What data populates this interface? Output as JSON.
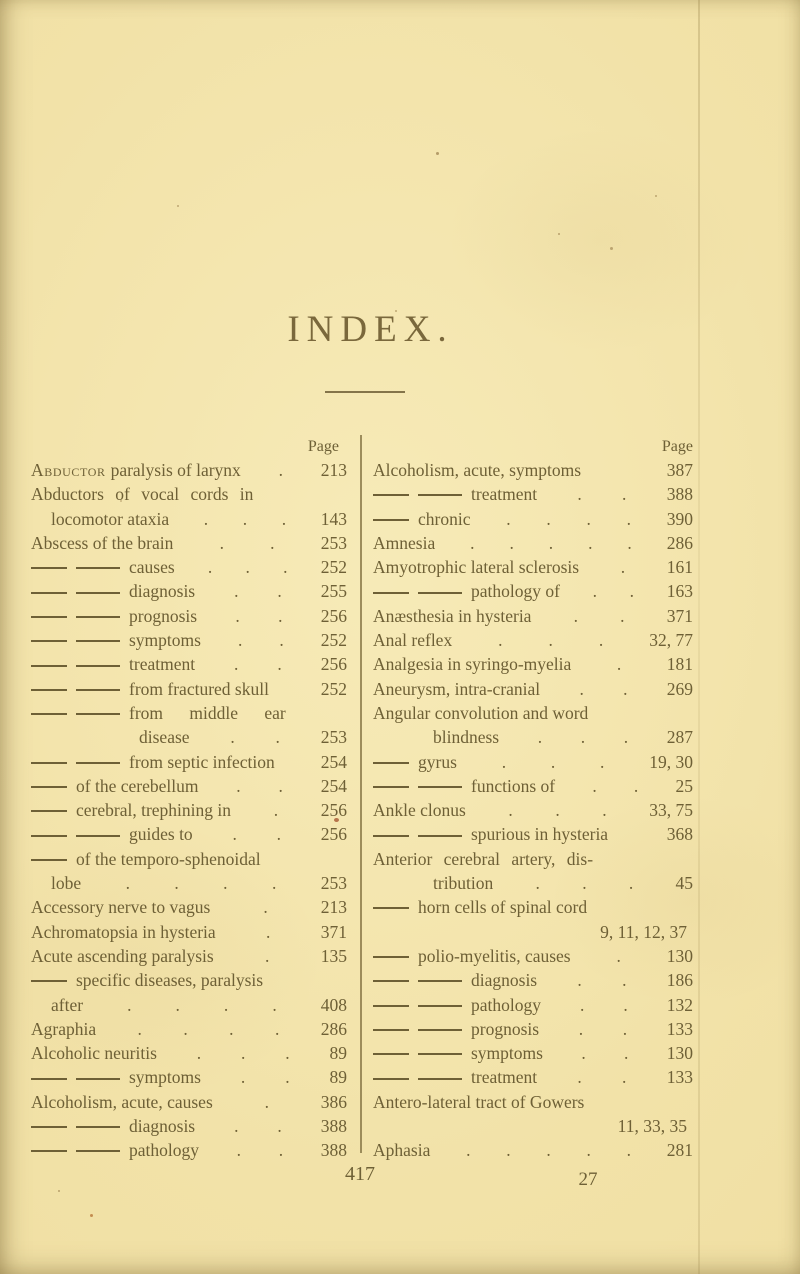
{
  "page": {
    "title": "INDEX.",
    "folio": "417",
    "signature": "27"
  },
  "columns": {
    "left": {
      "header": "Page",
      "entries": [
        {
          "sc": "Abductor",
          "text": "paralysis of larynx",
          "dots": 1,
          "page": "213"
        },
        {
          "text": "Abductors of vocal cords in",
          "spread": 1
        },
        {
          "text": "locomotor ataxia",
          "indent": 1,
          "dots": 3,
          "page": "143"
        },
        {
          "text": "Abscess of the brain",
          "dots": 2,
          "page": "253"
        },
        {
          "dashes": 2,
          "text": "causes",
          "dots": 3,
          "page": "252"
        },
        {
          "dashes": 2,
          "text": "diagnosis",
          "dots": 2,
          "page": "255"
        },
        {
          "dashes": 2,
          "text": "prognosis",
          "dots": 2,
          "page": "256"
        },
        {
          "dashes": 2,
          "text": "symptoms",
          "dots": 2,
          "page": "252"
        },
        {
          "dashes": 2,
          "text": "treatment",
          "dots": 2,
          "page": "256"
        },
        {
          "dashes": 2,
          "text": "from fractured skull",
          "dots": 0,
          "page": "252"
        },
        {
          "dashes": 2,
          "text": "from middle ear",
          "spread": 2
        },
        {
          "text": "disease",
          "indent": 3,
          "dots": 2,
          "page": "253"
        },
        {
          "dashes": 2,
          "text": "from septic infection",
          "dots": 0,
          "page": "254"
        },
        {
          "dashes": 1,
          "text": "of the cerebellum",
          "dots": 2,
          "page": "254"
        },
        {
          "dashes": 1,
          "text": "cerebral, trephining in",
          "dots": 1,
          "page": "256"
        },
        {
          "dashes": 2,
          "text": "guides to",
          "dots": 2,
          "page": "256"
        },
        {
          "dashes": 1,
          "text": "of the temporo-sphenoidal"
        },
        {
          "text": "lobe",
          "indent": 1,
          "dots": 4,
          "page": "253"
        },
        {
          "text": "Accessory nerve to vagus",
          "dots": 1,
          "page": "213"
        },
        {
          "text": "Achromatopsia in hysteria",
          "dots": 1,
          "page": "371"
        },
        {
          "text": "Acute ascending paralysis",
          "dots": 1,
          "page": "135"
        },
        {
          "dashes": 1,
          "text": "specific diseases, paralysis"
        },
        {
          "text": "after",
          "indent": 1,
          "dots": 4,
          "page": "408"
        },
        {
          "text": "Agraphia",
          "dots": 4,
          "page": "286"
        },
        {
          "text": "Alcoholic neuritis",
          "dots": 3,
          "page": "89"
        },
        {
          "dashes": 2,
          "text": "symptoms",
          "dots": 2,
          "page": "89"
        },
        {
          "text": "Alcoholism, acute, causes",
          "dots": 1,
          "page": "386"
        },
        {
          "dashes": 2,
          "text": "diagnosis",
          "dots": 2,
          "page": "388"
        },
        {
          "dashes": 2,
          "text": "pathology",
          "dots": 2,
          "page": "388"
        }
      ]
    },
    "right": {
      "header": "Page",
      "entries": [
        {
          "text": "Alcoholism, acute, symptoms",
          "dots": 0,
          "page": "387"
        },
        {
          "dashes": 2,
          "text": "treatment",
          "dots": 2,
          "page": "388"
        },
        {
          "dashes": 1,
          "text": "chronic",
          "dots": 4,
          "page": "390"
        },
        {
          "text": "Amnesia",
          "dots": 5,
          "page": "286"
        },
        {
          "text": "Amyotrophic lateral sclerosis",
          "dots": 1,
          "page": "161"
        },
        {
          "dashes": 2,
          "text": "pathology of",
          "dots": 2,
          "page": "163"
        },
        {
          "text": "Anæsthesia in hysteria",
          "dots": 2,
          "page": "371"
        },
        {
          "text": "Anal reflex",
          "dots": 3,
          "page": "32, 77"
        },
        {
          "text": "Analgesia in syringo-myelia",
          "dots": 1,
          "page": "181"
        },
        {
          "text": "Aneurysm, intra-cranial",
          "dots": 2,
          "page": "269"
        },
        {
          "text": "Angular convolution and word"
        },
        {
          "text": "blindness",
          "indent": 2,
          "dots": 3,
          "page": "287"
        },
        {
          "dashes": 1,
          "text": "gyrus",
          "dots": 3,
          "page": "19, 30"
        },
        {
          "dashes": 2,
          "text": "functions of",
          "dots": 2,
          "page": "25"
        },
        {
          "text": "Ankle clonus",
          "dots": 3,
          "page": "33, 75"
        },
        {
          "dashes": 2,
          "text": "spurious in hysteria",
          "dots": 0,
          "page": "368"
        },
        {
          "text": "Anterior cerebral artery, dis-",
          "spread": 1
        },
        {
          "text": "tribution",
          "indent": 2,
          "dots": 3,
          "page": "45"
        },
        {
          "dashes": 1,
          "text": "horn cells of spinal cord"
        },
        {
          "page": "9, 11, 12, 37"
        },
        {
          "dashes": 1,
          "text": "polio-myelitis, causes",
          "dots": 1,
          "page": "130"
        },
        {
          "dashes": 2,
          "text": "diagnosis",
          "dots": 2,
          "page": "186"
        },
        {
          "dashes": 2,
          "text": "pathology",
          "dots": 2,
          "page": "132"
        },
        {
          "dashes": 2,
          "text": "prognosis",
          "dots": 2,
          "page": "133"
        },
        {
          "dashes": 2,
          "text": "symptoms",
          "dots": 2,
          "page": "130"
        },
        {
          "dashes": 2,
          "text": "treatment",
          "dots": 2,
          "page": "133"
        },
        {
          "text": "Antero-lateral tract of Gowers"
        },
        {
          "page": "11, 33, 35"
        },
        {
          "text": "Aphasia",
          "dots": 5,
          "page": "281"
        }
      ]
    }
  }
}
